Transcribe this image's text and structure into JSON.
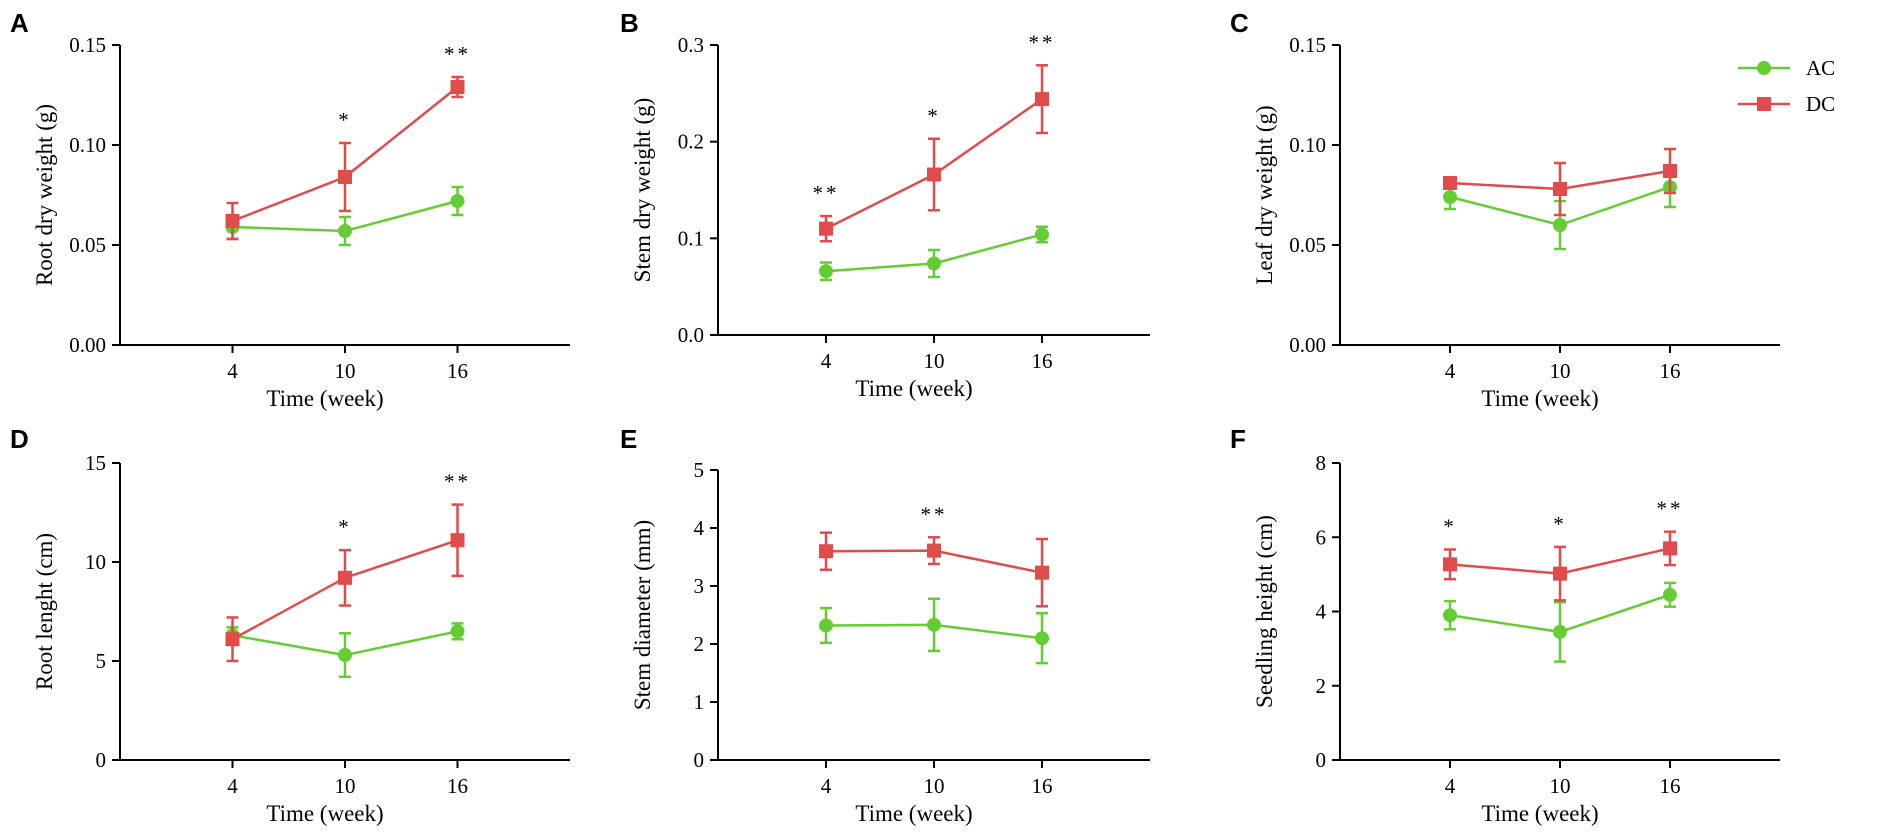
{
  "legend": [
    {
      "name": "AC",
      "color": "#66cc33",
      "marker": "circle"
    },
    {
      "name": "DC",
      "color": "#e04b4b",
      "marker": "square"
    }
  ],
  "chart_data": [
    {
      "panel": "A",
      "type": "line",
      "xlabel": "Time (week)",
      "ylabel": "Root dry weight (g)",
      "categories": [
        "4",
        "10",
        "16"
      ],
      "ylim": [
        0,
        0.15
      ],
      "yticks": [
        "0.00",
        "0.05",
        "0.10",
        "0.15"
      ],
      "series": [
        {
          "name": "AC",
          "values": [
            0.059,
            0.057,
            0.072
          ],
          "errors": [
            0.006,
            0.007,
            0.007
          ]
        },
        {
          "name": "DC",
          "values": [
            0.062,
            0.084,
            0.129
          ],
          "errors": [
            0.009,
            0.017,
            0.005
          ]
        }
      ],
      "significance": [
        "",
        "*",
        "**"
      ]
    },
    {
      "panel": "B",
      "type": "line",
      "xlabel": "Time (week)",
      "ylabel": "Stem dry weight (g)",
      "categories": [
        "4",
        "10",
        "16"
      ],
      "ylim": [
        0,
        0.3
      ],
      "yticks": [
        "0.0",
        "0.1",
        "0.2",
        "0.3"
      ],
      "series": [
        {
          "name": "AC",
          "values": [
            0.066,
            0.074,
            0.104
          ],
          "errors": [
            0.009,
            0.014,
            0.008
          ]
        },
        {
          "name": "DC",
          "values": [
            0.11,
            0.166,
            0.244
          ],
          "errors": [
            0.013,
            0.037,
            0.035
          ]
        }
      ],
      "significance": [
        "**",
        "*",
        "**"
      ]
    },
    {
      "panel": "C",
      "type": "line",
      "xlabel": "Time (week)",
      "ylabel": "Leaf dry weight (g)",
      "categories": [
        "4",
        "10",
        "16"
      ],
      "ylim": [
        0,
        0.15
      ],
      "yticks": [
        "0.00",
        "0.05",
        "0.10",
        "0.15"
      ],
      "series": [
        {
          "name": "AC",
          "values": [
            0.074,
            0.06,
            0.079
          ],
          "errors": [
            0.006,
            0.012,
            0.01
          ]
        },
        {
          "name": "DC",
          "values": [
            0.081,
            0.078,
            0.087
          ],
          "errors": [
            0.002,
            0.013,
            0.011
          ]
        }
      ],
      "significance": [
        "",
        "",
        ""
      ]
    },
    {
      "panel": "D",
      "type": "line",
      "xlabel": "Time (week)",
      "ylabel": "Root lenght (cm)",
      "categories": [
        "4",
        "10",
        "16"
      ],
      "ylim": [
        0,
        15
      ],
      "yticks": [
        "0",
        "5",
        "10",
        "15"
      ],
      "series": [
        {
          "name": "AC",
          "values": [
            6.3,
            5.3,
            6.5
          ],
          "errors": [
            0.4,
            1.1,
            0.4
          ]
        },
        {
          "name": "DC",
          "values": [
            6.1,
            9.2,
            11.1
          ],
          "errors": [
            1.1,
            1.4,
            1.8
          ]
        }
      ],
      "significance": [
        "",
        "*",
        "**"
      ]
    },
    {
      "panel": "E",
      "type": "line",
      "xlabel": "Time (week)",
      "ylabel": "Stem diameter (mm)",
      "categories": [
        "4",
        "10",
        "16"
      ],
      "ylim": [
        0,
        5
      ],
      "yticks": [
        "0",
        "1",
        "2",
        "3",
        "4",
        "5"
      ],
      "series": [
        {
          "name": "AC",
          "values": [
            2.32,
            2.33,
            2.1
          ],
          "errors": [
            0.3,
            0.45,
            0.43
          ]
        },
        {
          "name": "DC",
          "values": [
            3.6,
            3.61,
            3.23
          ],
          "errors": [
            0.32,
            0.23,
            0.58
          ]
        }
      ],
      "significance": [
        "",
        "**",
        ""
      ]
    },
    {
      "panel": "F",
      "type": "line",
      "xlabel": "Time (week)",
      "ylabel": "Seedling height (cm)",
      "categories": [
        "4",
        "10",
        "16"
      ],
      "ylim": [
        0,
        8
      ],
      "yticks": [
        "0",
        "2",
        "4",
        "6",
        "8"
      ],
      "series": [
        {
          "name": "AC",
          "values": [
            3.9,
            3.45,
            4.45
          ],
          "errors": [
            0.38,
            0.8,
            0.32
          ]
        },
        {
          "name": "DC",
          "values": [
            5.27,
            5.02,
            5.7
          ],
          "errors": [
            0.4,
            0.72,
            0.45
          ]
        }
      ],
      "significance": [
        "*",
        "*",
        "**"
      ]
    }
  ]
}
